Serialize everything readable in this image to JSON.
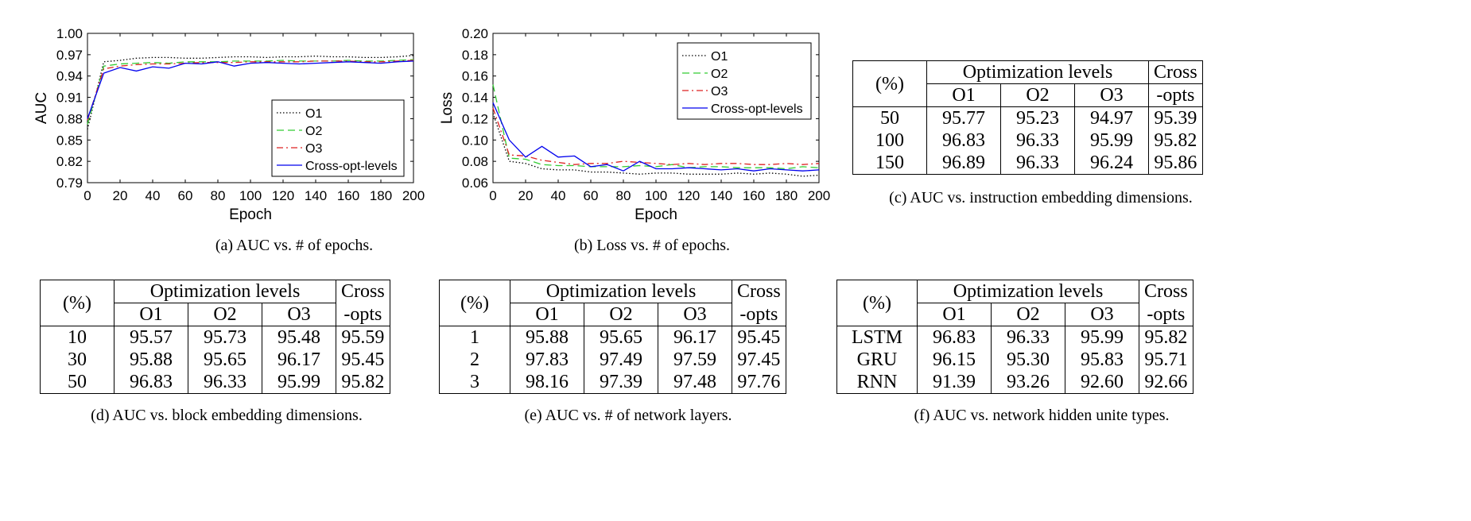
{
  "charts": [
    {
      "chart_data": {
        "type": "line",
        "xlabel": "Epoch",
        "ylabel": "AUC",
        "xlim": [
          0,
          200
        ],
        "ylim": [
          0.79,
          1.0
        ],
        "xticks": [
          "0",
          "20",
          "40",
          "60",
          "80",
          "100",
          "120",
          "140",
          "160",
          "180",
          "200"
        ],
        "yticks": [
          "0.79",
          "0.82",
          "0.85",
          "0.88",
          "0.91",
          "0.94",
          "0.97",
          "1.00"
        ],
        "x": [
          0,
          10,
          20,
          30,
          40,
          50,
          60,
          70,
          80,
          90,
          100,
          110,
          120,
          130,
          140,
          150,
          160,
          170,
          180,
          190,
          200
        ],
        "legend_position": "bottom-right",
        "series": [
          {
            "name": "O1",
            "color": "#000000",
            "dash": "dotted",
            "values": [
              0.865,
              0.96,
              0.962,
              0.965,
              0.966,
              0.966,
              0.965,
              0.965,
              0.966,
              0.967,
              0.967,
              0.966,
              0.967,
              0.967,
              0.968,
              0.967,
              0.967,
              0.966,
              0.966,
              0.967,
              0.969
            ]
          },
          {
            "name": "O2",
            "color": "#33cc33",
            "dash": "dashed",
            "values": [
              0.872,
              0.954,
              0.957,
              0.958,
              0.959,
              0.958,
              0.96,
              0.96,
              0.96,
              0.961,
              0.961,
              0.961,
              0.962,
              0.961,
              0.961,
              0.961,
              0.962,
              0.961,
              0.961,
              0.962,
              0.963
            ]
          },
          {
            "name": "O3",
            "color": "#dd2222",
            "dash": "dashdot",
            "values": [
              0.878,
              0.95,
              0.954,
              0.956,
              0.957,
              0.957,
              0.958,
              0.959,
              0.959,
              0.959,
              0.96,
              0.96,
              0.96,
              0.96,
              0.961,
              0.961,
              0.961,
              0.96,
              0.96,
              0.961,
              0.962
            ]
          },
          {
            "name": "Cross-opt-levels",
            "color": "#0000ee",
            "dash": "solid",
            "values": [
              0.88,
              0.944,
              0.952,
              0.947,
              0.953,
              0.951,
              0.958,
              0.957,
              0.96,
              0.954,
              0.958,
              0.959,
              0.958,
              0.957,
              0.958,
              0.959,
              0.96,
              0.959,
              0.958,
              0.96,
              0.961
            ]
          }
        ]
      },
      "caption": "(a) AUC vs. # of epochs."
    },
    {
      "chart_data": {
        "type": "line",
        "xlabel": "Epoch",
        "ylabel": "Loss",
        "xlim": [
          0,
          200
        ],
        "ylim": [
          0.06,
          0.2
        ],
        "xticks": [
          "0",
          "20",
          "40",
          "60",
          "80",
          "100",
          "120",
          "140",
          "160",
          "180",
          "200"
        ],
        "yticks": [
          "0.06",
          "0.08",
          "0.10",
          "0.12",
          "0.14",
          "0.16",
          "0.18",
          "0.20"
        ],
        "x": [
          0,
          10,
          20,
          30,
          40,
          50,
          60,
          70,
          80,
          90,
          100,
          110,
          120,
          130,
          140,
          150,
          160,
          170,
          180,
          190,
          200
        ],
        "legend_position": "top-right",
        "series": [
          {
            "name": "O1",
            "color": "#000000",
            "dash": "dotted",
            "values": [
              0.125,
              0.08,
              0.078,
              0.073,
              0.072,
              0.072,
              0.07,
              0.07,
              0.069,
              0.068,
              0.069,
              0.069,
              0.068,
              0.068,
              0.068,
              0.069,
              0.068,
              0.069,
              0.068,
              0.066,
              0.067
            ]
          },
          {
            "name": "O2",
            "color": "#33cc33",
            "dash": "dashed",
            "values": [
              0.152,
              0.083,
              0.082,
              0.077,
              0.076,
              0.076,
              0.075,
              0.075,
              0.075,
              0.076,
              0.075,
              0.077,
              0.074,
              0.075,
              0.075,
              0.074,
              0.074,
              0.074,
              0.073,
              0.075,
              0.074
            ]
          },
          {
            "name": "O3",
            "color": "#dd2222",
            "dash": "dashdot",
            "values": [
              0.13,
              0.086,
              0.085,
              0.081,
              0.079,
              0.077,
              0.078,
              0.078,
              0.08,
              0.079,
              0.078,
              0.077,
              0.078,
              0.077,
              0.078,
              0.078,
              0.077,
              0.077,
              0.078,
              0.077,
              0.078
            ]
          },
          {
            "name": "Cross-opt-levels",
            "color": "#0000ee",
            "dash": "solid",
            "values": [
              0.135,
              0.1,
              0.084,
              0.094,
              0.084,
              0.085,
              0.075,
              0.077,
              0.071,
              0.08,
              0.073,
              0.073,
              0.074,
              0.073,
              0.072,
              0.073,
              0.071,
              0.073,
              0.072,
              0.071,
              0.072
            ]
          }
        ]
      },
      "caption": "(b) Loss vs. # of epochs."
    }
  ],
  "tables": [
    {
      "header": {
        "first": "(%)",
        "group": "Optimization levels",
        "cross_top": "Cross",
        "cross_bottom": "-opts",
        "cols": [
          "O1",
          "O2",
          "O3"
        ]
      },
      "rows": [
        [
          "50",
          "95.77",
          "95.23",
          "94.97",
          "95.39"
        ],
        [
          "100",
          "96.83",
          "96.33",
          "95.99",
          "95.82"
        ],
        [
          "150",
          "96.89",
          "96.33",
          "96.24",
          "95.86"
        ]
      ],
      "caption": "(c) AUC vs. instruction embedding dimensions."
    },
    {
      "header": {
        "first": "(%)",
        "group": "Optimization levels",
        "cross_top": "Cross",
        "cross_bottom": "-opts",
        "cols": [
          "O1",
          "O2",
          "O3"
        ]
      },
      "rows": [
        [
          "10",
          "95.57",
          "95.73",
          "95.48",
          "95.59"
        ],
        [
          "30",
          "95.88",
          "95.65",
          "96.17",
          "95.45"
        ],
        [
          "50",
          "96.83",
          "96.33",
          "95.99",
          "95.82"
        ]
      ],
      "caption": "(d) AUC vs. block embedding dimensions."
    },
    {
      "header": {
        "first": "(%)",
        "group": "Optimization levels",
        "cross_top": "Cross",
        "cross_bottom": "-opts",
        "cols": [
          "O1",
          "O2",
          "O3"
        ]
      },
      "rows": [
        [
          "1",
          "95.88",
          "95.65",
          "96.17",
          "95.45"
        ],
        [
          "2",
          "97.83",
          "97.49",
          "97.59",
          "97.45"
        ],
        [
          "3",
          "98.16",
          "97.39",
          "97.48",
          "97.76"
        ]
      ],
      "caption": "(e) AUC vs. # of network layers."
    },
    {
      "header": {
        "first": "(%)",
        "group": "Optimization levels",
        "cross_top": "Cross",
        "cross_bottom": "-opts",
        "cols": [
          "O1",
          "O2",
          "O3"
        ]
      },
      "rows": [
        [
          "LSTM",
          "96.83",
          "96.33",
          "95.99",
          "95.82"
        ],
        [
          "GRU",
          "96.15",
          "95.30",
          "95.83",
          "95.71"
        ],
        [
          "RNN",
          "91.39",
          "93.26",
          "92.60",
          "92.66"
        ]
      ],
      "caption": "(f) AUC vs. network hidden unite types."
    }
  ]
}
